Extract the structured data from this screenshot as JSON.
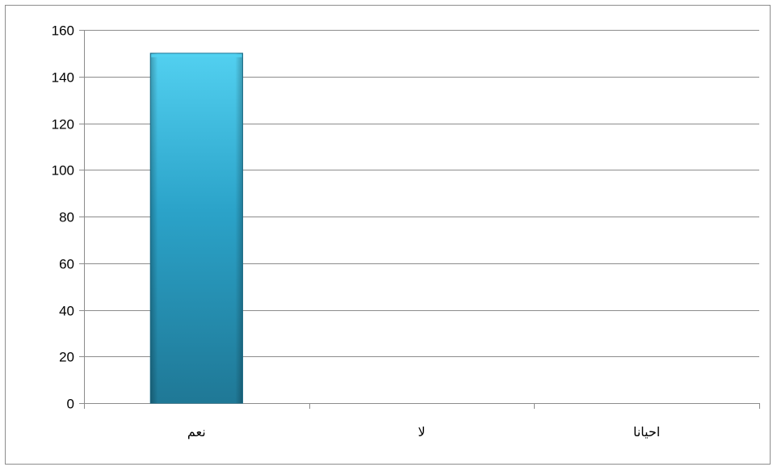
{
  "chart_data": {
    "type": "bar",
    "categories": [
      "نعم",
      "لا",
      "احيانا"
    ],
    "values": [
      150,
      0,
      0
    ],
    "ylim": [
      0,
      160
    ],
    "yticks": [
      0,
      20,
      40,
      60,
      80,
      100,
      120,
      140,
      160
    ],
    "grid": true,
    "legend": "none",
    "bar_color": "#2ba3c9",
    "bar_top_color": "#52d0f0",
    "bar_bottom_color": "#1f7896"
  }
}
